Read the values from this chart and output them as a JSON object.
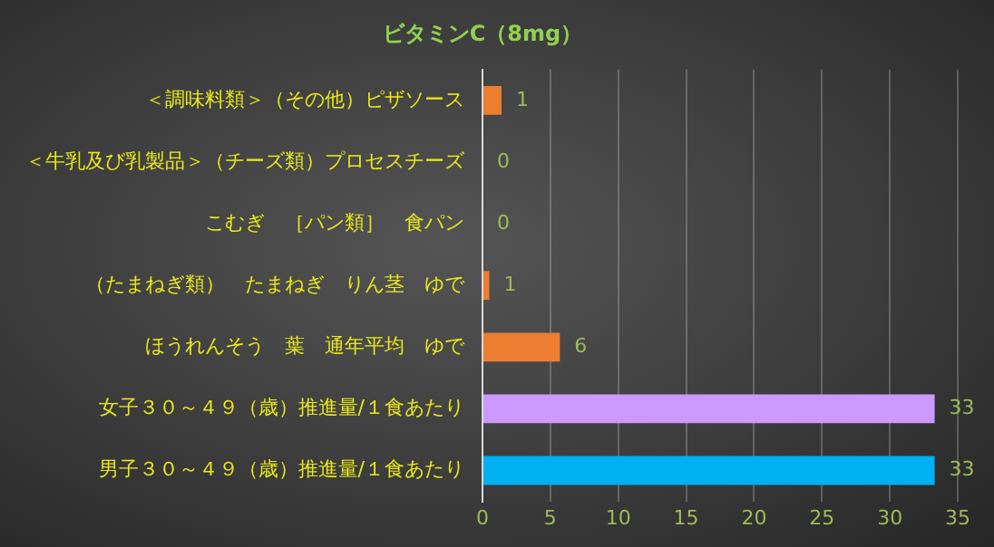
{
  "chart_data": {
    "type": "bar",
    "orientation": "horizontal",
    "title": "ビタミンC（8mg）",
    "categories": [
      "＜調味料類＞（その他）ピザソース",
      "＜牛乳及び乳製品＞（チーズ類）プロセスチーズ",
      "こむぎ　［パン類］　食パン",
      "（たまねぎ類）　たまねぎ　りん茎　ゆで",
      "ほうれんそう　葉　通年平均　ゆで",
      "女子３０～４９（歳）推進量/１食あたり",
      "男子３０～４９（歳）推進量/１食あたり"
    ],
    "values": [
      1.4,
      0,
      0,
      0.5,
      5.7,
      33.3,
      33.3
    ],
    "value_labels": [
      "1",
      "0",
      "0",
      "1",
      "6",
      "33",
      "33"
    ],
    "colors": [
      "#ed7d31",
      "#ed7d31",
      "#ed7d31",
      "#ed7d31",
      "#ed7d31",
      "#cc99ff",
      "#00b0f0"
    ],
    "xlim": [
      0,
      35
    ],
    "xticks": [
      0,
      5,
      10,
      15,
      20,
      25,
      30,
      35
    ],
    "grid": "x",
    "legend": false
  }
}
